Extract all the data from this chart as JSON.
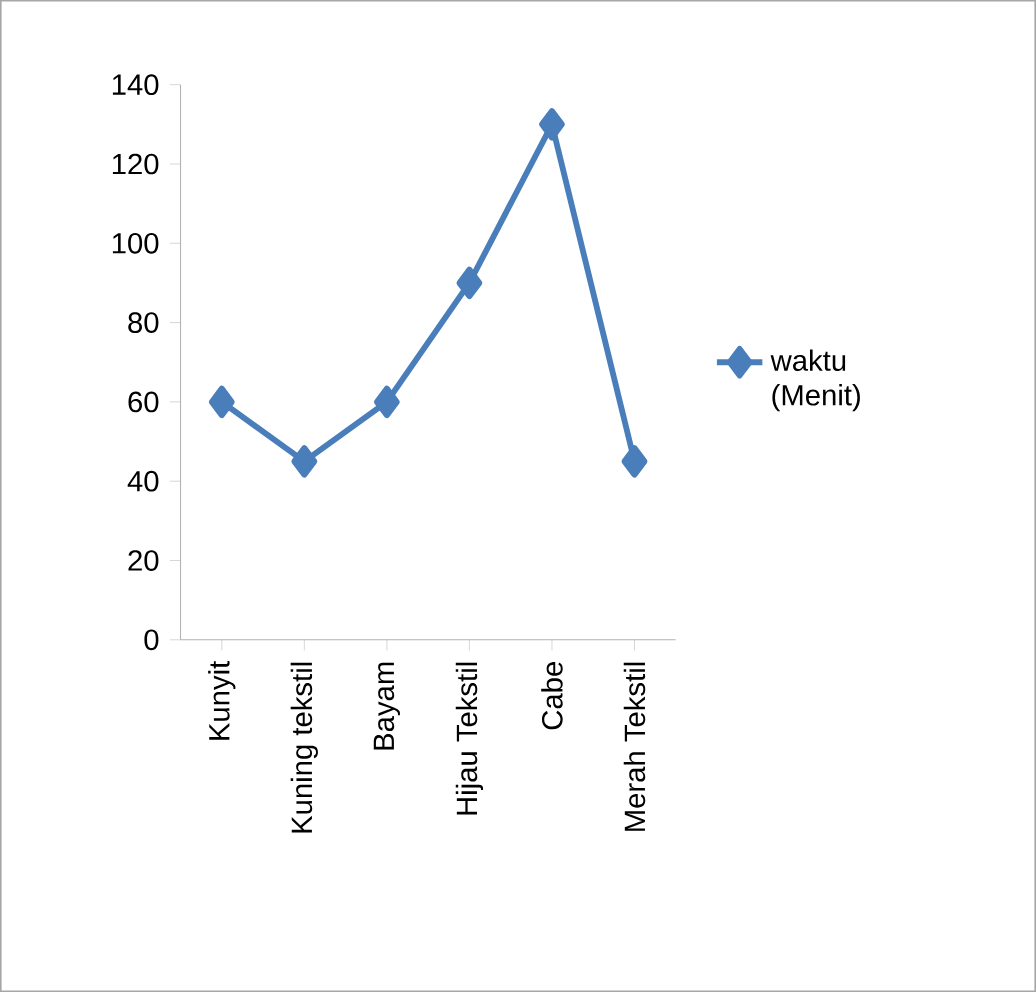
{
  "chart_data": {
    "type": "line",
    "categories": [
      "Kunyit",
      "Kuning tekstil",
      "Bayam",
      "Hijau Tekstil",
      "Cabe",
      "Merah Tekstil"
    ],
    "series": [
      {
        "name": "waktu (Menit)",
        "color": "#4a7ebb",
        "values": [
          60,
          45,
          60,
          90,
          130,
          45
        ]
      }
    ],
    "ylim": [
      0,
      140
    ],
    "yticks": [
      0,
      20,
      40,
      60,
      80,
      100,
      120,
      140
    ],
    "marker": "diamond",
    "line_style": "solid",
    "legend": "right",
    "grid": false
  }
}
